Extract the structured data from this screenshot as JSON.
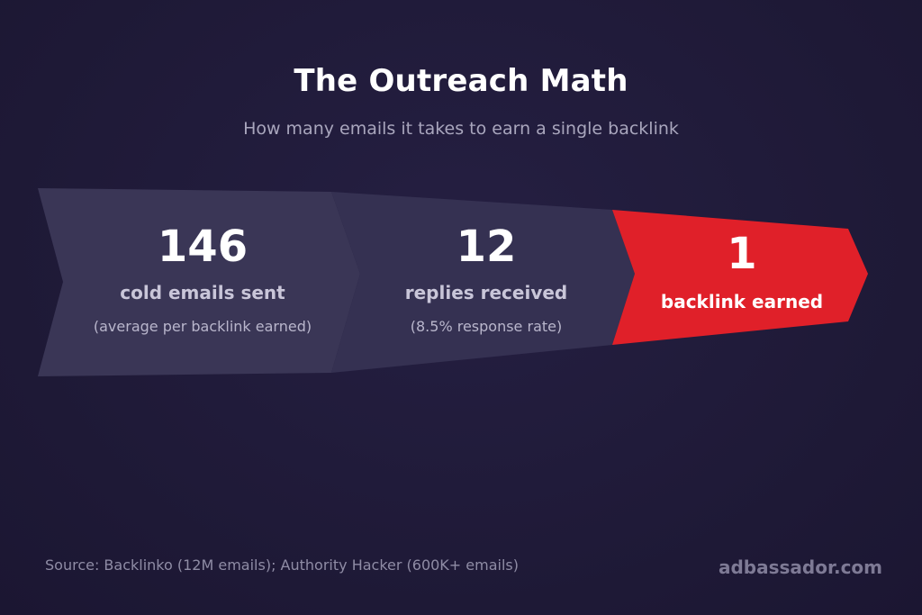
{
  "header": {
    "title": "The Outreach Math",
    "subtitle": "How many emails it takes to earn a single backlink"
  },
  "stages": [
    {
      "value": "146",
      "label": "cold emails sent",
      "note": "(average per backlink earned)"
    },
    {
      "value": "12",
      "label": "replies received",
      "note": "(8.5% response rate)"
    },
    {
      "value": "1",
      "label": "backlink earned",
      "note": ""
    }
  ],
  "footer": {
    "source": "Source: Backlinko (12M emails); Authority Hacker (600K+ emails)",
    "brand": "adbassador.com"
  },
  "colors": {
    "background": "#1f1a38",
    "stage_1": "#3a3656",
    "stage_2": "#353152",
    "stage_3": "#e02029"
  }
}
